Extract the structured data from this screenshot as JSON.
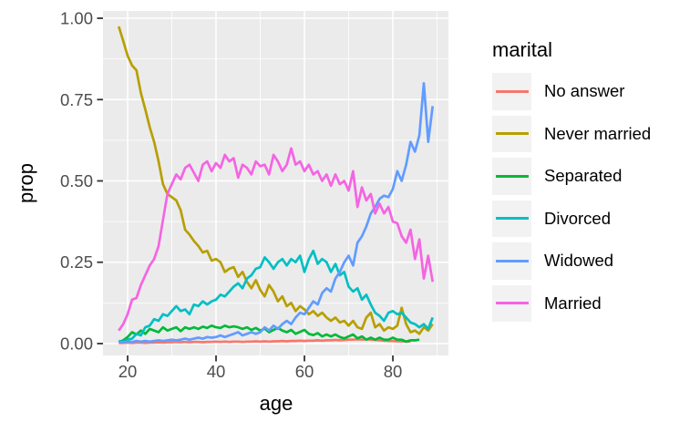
{
  "figure": {
    "x_axis_title": "age",
    "y_axis_title": "prop"
  },
  "legend": {
    "title": "marital"
  },
  "chart_data": {
    "type": "line",
    "title": "",
    "xlabel": "age",
    "ylabel": "prop",
    "panel_bg": "#EBEBEB",
    "grid_color": "#FFFFFF",
    "tick_label_color": "#4D4D4D",
    "tick_mark_color": "#333333",
    "legend_position": "right",
    "grid": "on",
    "x_domain": [
      14.43,
      92.57
    ],
    "y_domain": [
      -0.0365,
      1.0225
    ],
    "xlim": [
      18,
      89
    ],
    "ylim": [
      0,
      1.0
    ],
    "x_ticks": [
      20,
      40,
      60,
      80
    ],
    "x_tick_labels": [
      "20",
      "40",
      "60",
      "80"
    ],
    "x_minor": [
      30,
      50,
      70,
      90
    ],
    "y_ticks": [
      0.0,
      0.25,
      0.5,
      0.75,
      1.0
    ],
    "y_tick_labels": [
      "0.00",
      "0.25",
      "0.50",
      "0.75",
      "1.00"
    ],
    "y_minor": [
      0.125,
      0.375,
      0.625,
      0.875
    ],
    "x": [
      18,
      19,
      20,
      21,
      22,
      23,
      24,
      25,
      26,
      27,
      28,
      29,
      30,
      31,
      32,
      33,
      34,
      35,
      36,
      37,
      38,
      39,
      40,
      41,
      42,
      43,
      44,
      45,
      46,
      47,
      48,
      49,
      50,
      51,
      52,
      53,
      54,
      55,
      56,
      57,
      58,
      59,
      60,
      61,
      62,
      63,
      64,
      65,
      66,
      67,
      68,
      69,
      70,
      71,
      72,
      73,
      74,
      75,
      76,
      77,
      78,
      79,
      80,
      81,
      82,
      83,
      84,
      85,
      86,
      87,
      88,
      89
    ],
    "series": [
      {
        "name": "No answer",
        "color": "#F8766D",
        "values": [
          0.002,
          0.002,
          0.003,
          0.002,
          0.003,
          0.003,
          0.002,
          0.003,
          0.003,
          0.004,
          0.003,
          0.004,
          0.004,
          0.005,
          0.004,
          0.005,
          0.004,
          0.005,
          0.005,
          0.004,
          0.005,
          0.005,
          0.006,
          0.005,
          0.006,
          0.005,
          0.006,
          0.006,
          0.005,
          0.006,
          0.006,
          0.007,
          0.006,
          0.007,
          0.006,
          0.007,
          0.007,
          0.008,
          0.007,
          0.008,
          0.008,
          0.009,
          0.008,
          0.009,
          0.009,
          0.01,
          0.009,
          0.01,
          0.01,
          0.011,
          0.01,
          0.011,
          0.012,
          0.012,
          0.013,
          0.012,
          0.013,
          0.012,
          0.011,
          0.01,
          0.009,
          0.008,
          0.008,
          0.007,
          0.007,
          0.006,
          0.006,
          null,
          null,
          null,
          null,
          null
        ]
      },
      {
        "name": "Never married",
        "color": "#B79F00",
        "values": [
          0.975,
          0.93,
          0.885,
          0.855,
          0.84,
          0.77,
          0.72,
          0.665,
          0.62,
          0.56,
          0.49,
          0.46,
          0.45,
          0.44,
          0.41,
          0.35,
          0.335,
          0.315,
          0.3,
          0.28,
          0.285,
          0.255,
          0.26,
          0.25,
          0.22,
          0.23,
          0.235,
          0.205,
          0.22,
          0.19,
          0.17,
          0.195,
          0.165,
          0.145,
          0.18,
          0.16,
          0.13,
          0.145,
          0.115,
          0.125,
          0.1,
          0.115,
          0.105,
          0.09,
          0.1,
          0.085,
          0.095,
          0.08,
          0.07,
          0.08,
          0.065,
          0.07,
          0.055,
          0.07,
          0.05,
          0.045,
          0.08,
          0.095,
          0.05,
          0.06,
          0.04,
          0.05,
          0.045,
          0.055,
          0.11,
          0.06,
          0.035,
          0.04,
          0.03,
          0.05,
          0.04,
          0.06
        ]
      },
      {
        "name": "Separated",
        "color": "#00BA38",
        "values": [
          0.004,
          0.01,
          0.02,
          0.035,
          0.028,
          0.04,
          0.03,
          0.045,
          0.04,
          0.035,
          0.05,
          0.04,
          0.045,
          0.05,
          0.038,
          0.05,
          0.045,
          0.05,
          0.045,
          0.052,
          0.048,
          0.055,
          0.05,
          0.048,
          0.055,
          0.05,
          0.053,
          0.05,
          0.045,
          0.05,
          0.042,
          0.048,
          0.04,
          0.046,
          0.035,
          0.042,
          0.048,
          0.04,
          0.035,
          0.042,
          0.03,
          0.036,
          0.042,
          0.03,
          0.026,
          0.032,
          0.022,
          0.028,
          0.022,
          0.028,
          0.02,
          0.016,
          0.022,
          0.028,
          0.016,
          0.022,
          0.012,
          0.018,
          0.012,
          0.018,
          0.012,
          0.012,
          0.018,
          0.012,
          0.012,
          0.006,
          0.01,
          0.01,
          0.012,
          null,
          null,
          null
        ]
      },
      {
        "name": "Divorced",
        "color": "#00BFC4",
        "values": [
          0.008,
          0.005,
          0.012,
          0.015,
          0.03,
          0.025,
          0.05,
          0.055,
          0.075,
          0.07,
          0.09,
          0.085,
          0.1,
          0.115,
          0.1,
          0.105,
          0.09,
          0.12,
          0.115,
          0.13,
          0.12,
          0.13,
          0.135,
          0.15,
          0.145,
          0.16,
          0.175,
          0.185,
          0.17,
          0.2,
          0.21,
          0.23,
          0.235,
          0.265,
          0.25,
          0.23,
          0.25,
          0.26,
          0.24,
          0.26,
          0.25,
          0.27,
          0.22,
          0.26,
          0.285,
          0.245,
          0.26,
          0.25,
          0.22,
          0.245,
          0.21,
          0.22,
          0.175,
          0.16,
          0.17,
          0.135,
          0.15,
          0.12,
          0.095,
          0.085,
          0.07,
          0.095,
          0.1,
          0.09,
          0.095,
          0.08,
          0.065,
          0.06,
          0.05,
          0.06,
          0.045,
          0.08
        ]
      },
      {
        "name": "Widowed",
        "color": "#619CFF",
        "values": [
          0.005,
          0.004,
          0.006,
          0.005,
          0.008,
          0.006,
          0.008,
          0.006,
          0.008,
          0.01,
          0.008,
          0.01,
          0.012,
          0.01,
          0.012,
          0.015,
          0.012,
          0.015,
          0.018,
          0.015,
          0.02,
          0.018,
          0.02,
          0.025,
          0.02,
          0.025,
          0.03,
          0.035,
          0.025,
          0.03,
          0.035,
          0.03,
          0.035,
          0.05,
          0.04,
          0.055,
          0.045,
          0.06,
          0.07,
          0.06,
          0.08,
          0.095,
          0.09,
          0.11,
          0.13,
          0.12,
          0.155,
          0.17,
          0.16,
          0.2,
          0.22,
          0.25,
          0.27,
          0.24,
          0.31,
          0.33,
          0.36,
          0.4,
          0.42,
          0.445,
          0.455,
          0.45,
          0.475,
          0.53,
          0.5,
          0.55,
          0.62,
          0.59,
          0.64,
          0.8,
          0.62,
          0.73
        ]
      },
      {
        "name": "Married",
        "color": "#F564E3",
        "values": [
          0.04,
          0.06,
          0.09,
          0.135,
          0.14,
          0.18,
          0.21,
          0.24,
          0.26,
          0.3,
          0.38,
          0.46,
          0.49,
          0.52,
          0.505,
          0.54,
          0.55,
          0.525,
          0.5,
          0.55,
          0.56,
          0.53,
          0.555,
          0.54,
          0.58,
          0.56,
          0.57,
          0.51,
          0.55,
          0.54,
          0.52,
          0.56,
          0.545,
          0.55,
          0.52,
          0.58,
          0.56,
          0.53,
          0.55,
          0.6,
          0.55,
          0.56,
          0.53,
          0.55,
          0.52,
          0.53,
          0.5,
          0.52,
          0.485,
          0.52,
          0.49,
          0.5,
          0.47,
          0.53,
          0.42,
          0.48,
          0.44,
          0.46,
          0.4,
          0.43,
          0.4,
          0.42,
          0.375,
          0.37,
          0.33,
          0.31,
          0.35,
          0.26,
          0.32,
          0.2,
          0.27,
          0.19
        ]
      }
    ]
  }
}
